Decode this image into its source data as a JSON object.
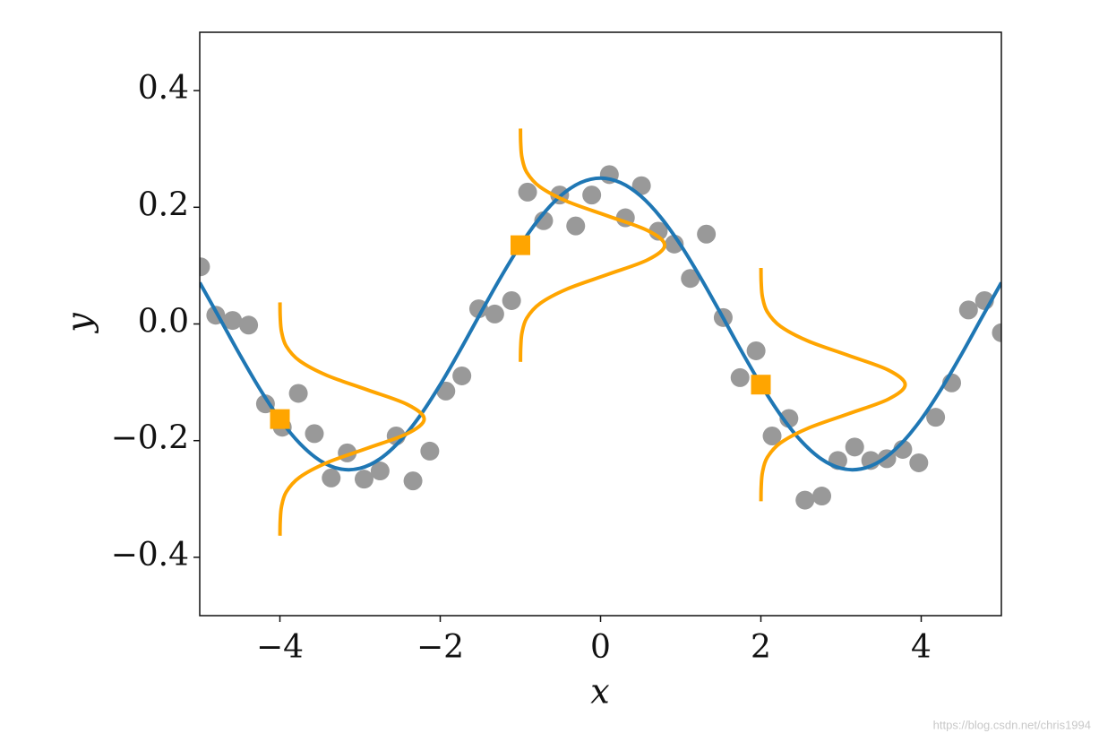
{
  "chart_data": {
    "type": "scatter",
    "xlabel": "x",
    "ylabel": "y",
    "xlim": [
      -5,
      5
    ],
    "ylim": [
      -0.5,
      0.5
    ],
    "xticks": [
      {
        "value": -4,
        "label": "−4"
      },
      {
        "value": -2,
        "label": "−2"
      },
      0,
      2,
      4
    ],
    "yticks": [
      {
        "value": -0.4,
        "label": "−0.4"
      },
      {
        "value": -0.2,
        "label": "−0.2"
      },
      {
        "value": 0,
        "label": "0.0"
      },
      0.2,
      0.4
    ],
    "watermark": "https://blog.csdn.net/chris1994",
    "series": [
      {
        "type": "scatter",
        "marker": "circle",
        "color": "#999999",
        "x": [
          -4.99,
          -4.8,
          -4.59,
          -4.39,
          -4.18,
          -3.97,
          -3.77,
          -3.57,
          -3.36,
          -3.16,
          -2.95,
          -2.75,
          -2.55,
          -2.34,
          -2.13,
          -1.93,
          -1.73,
          -1.52,
          -1.32,
          -1.11,
          -0.91,
          -0.71,
          -0.51,
          -0.31,
          -0.11,
          0.11,
          0.31,
          0.51,
          0.72,
          0.92,
          1.12,
          1.32,
          1.53,
          1.74,
          1.94,
          2.14,
          2.35,
          2.55,
          2.76,
          2.96,
          3.17,
          3.37,
          3.57,
          3.77,
          3.97,
          4.18,
          4.38,
          4.59,
          4.79,
          5.0
        ],
        "values": [
          0.098,
          0.015,
          0.006,
          -0.002,
          -0.137,
          -0.177,
          -0.119,
          -0.188,
          -0.264,
          -0.221,
          -0.266,
          -0.252,
          -0.192,
          -0.269,
          -0.218,
          -0.115,
          -0.089,
          0.026,
          0.017,
          0.04,
          0.226,
          0.177,
          0.221,
          0.168,
          0.221,
          0.256,
          0.182,
          0.237,
          0.159,
          0.137,
          0.078,
          0.154,
          0.011,
          -0.092,
          -0.046,
          -0.192,
          -0.162,
          -0.302,
          -0.295,
          -0.234,
          -0.211,
          -0.234,
          -0.231,
          -0.215,
          -0.238,
          -0.16,
          -0.101,
          0.024,
          0.04,
          -0.015
        ]
      },
      {
        "type": "line",
        "color": "#1f77b4",
        "x": [
          -5,
          -4.75,
          -4.5,
          -4.25,
          -4,
          -3.75,
          -3.5,
          -3.25,
          -3,
          -2.75,
          -2.5,
          -2.25,
          -2,
          -1.75,
          -1.5,
          -1.25,
          -1,
          -0.75,
          -0.5,
          -0.25,
          0,
          0.25,
          0.5,
          0.75,
          1,
          1.25,
          1.5,
          1.75,
          2,
          2.25,
          2.5,
          2.75,
          3,
          3.25,
          3.5,
          3.75,
          4,
          4.25,
          4.5,
          4.75,
          5
        ],
        "values": [
          0.0709,
          0.0094,
          -0.0527,
          -0.1115,
          -0.1634,
          -0.2051,
          -0.2341,
          -0.2485,
          -0.2475,
          -0.2311,
          -0.2003,
          -0.157,
          -0.104,
          -0.0446,
          0.0177,
          0.0788,
          0.1351,
          0.1829,
          0.2194,
          0.2422,
          0.25,
          0.2422,
          0.2194,
          0.1829,
          0.1351,
          0.0788,
          0.0177,
          -0.0446,
          -0.104,
          -0.157,
          -0.2003,
          -0.2311,
          -0.2475,
          -0.2485,
          -0.2341,
          -0.2051,
          -0.1634,
          -0.1115,
          -0.0527,
          0.0094,
          0.0709
        ]
      },
      {
        "type": "line",
        "color": "#ffa500",
        "x": [
          -3.999,
          -3.996,
          -3.98,
          -3.921,
          -3.756,
          -3.416,
          -2.908,
          -2.411,
          -2.2,
          -2.411,
          -2.908,
          -3.416,
          -3.756,
          -3.921,
          -3.98,
          -3.996,
          -3.999
        ],
        "values": [
          -0.363,
          -0.338,
          -0.313,
          -0.288,
          -0.263,
          -0.238,
          -0.213,
          -0.188,
          -0.163,
          -0.138,
          -0.113,
          -0.088,
          -0.063,
          -0.038,
          -0.013,
          0.012,
          0.037
        ]
      },
      {
        "type": "line",
        "color": "#ffa500",
        "x": [
          -0.999,
          -0.996,
          -0.98,
          -0.921,
          -0.756,
          -0.416,
          0.092,
          0.589,
          0.8,
          0.589,
          0.092,
          -0.416,
          -0.756,
          -0.921,
          -0.98,
          -0.996,
          -0.999
        ],
        "values": [
          -0.065,
          -0.04,
          -0.015,
          0.01,
          0.035,
          0.06,
          0.085,
          0.11,
          0.135,
          0.16,
          0.185,
          0.21,
          0.235,
          0.26,
          0.285,
          0.31,
          0.335
        ]
      },
      {
        "type": "line",
        "color": "#ffa500",
        "x": [
          2.001,
          2.004,
          2.02,
          2.079,
          2.244,
          2.584,
          3.092,
          3.589,
          3.8,
          3.589,
          3.092,
          2.584,
          2.244,
          2.079,
          2.02,
          2.004,
          2.001
        ],
        "values": [
          -0.304,
          -0.279,
          -0.254,
          -0.229,
          -0.204,
          -0.179,
          -0.154,
          -0.129,
          -0.104,
          -0.079,
          -0.054,
          -0.029,
          -0.004,
          0.021,
          0.046,
          0.071,
          0.096
        ]
      },
      {
        "type": "scatter",
        "marker": "square",
        "color": "#ffa500",
        "x": [
          -4,
          -1,
          2
        ],
        "values": [
          -0.163,
          0.135,
          -0.104
        ]
      }
    ]
  }
}
